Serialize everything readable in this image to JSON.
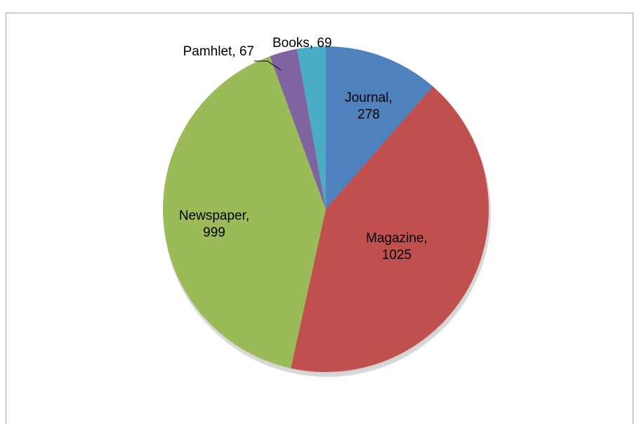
{
  "chart_data": {
    "type": "pie",
    "categories": [
      "Journal",
      "Magazine",
      "Newspaper",
      "Pamhlet",
      "Books"
    ],
    "values": [
      278,
      1025,
      999,
      67,
      69
    ],
    "colors": [
      "#4f81bd",
      "#c0504d",
      "#9bbb59",
      "#8064a2",
      "#4bacc6"
    ]
  }
}
